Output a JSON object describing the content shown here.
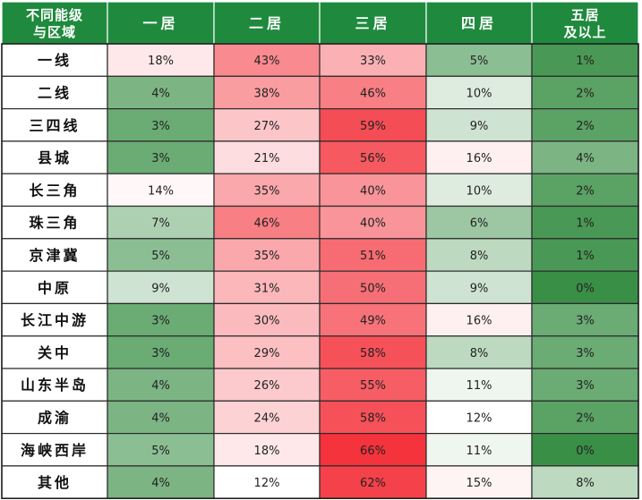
{
  "chart_data": {
    "type": "heatmap",
    "title": "",
    "corner_header": [
      "不同能级",
      "与区域"
    ],
    "columns": [
      {
        "label": [
          "一居"
        ]
      },
      {
        "label": [
          "二居"
        ]
      },
      {
        "label": [
          "三居"
        ]
      },
      {
        "label": [
          "四居"
        ]
      },
      {
        "label": [
          "五居",
          "及以上"
        ]
      }
    ],
    "rows": [
      "一线",
      "二线",
      "三四线",
      "县城",
      "长三角",
      "珠三角",
      "京津冀",
      "中原",
      "长江中游",
      "关中",
      "山东半岛",
      "成渝",
      "海峡西岸",
      "其他"
    ],
    "values": [
      [
        18,
        43,
        33,
        5,
        1
      ],
      [
        4,
        38,
        46,
        10,
        2
      ],
      [
        3,
        27,
        59,
        9,
        2
      ],
      [
        3,
        21,
        56,
        16,
        4
      ],
      [
        14,
        35,
        40,
        10,
        2
      ],
      [
        7,
        46,
        40,
        6,
        1
      ],
      [
        5,
        35,
        51,
        8,
        1
      ],
      [
        9,
        31,
        50,
        9,
        0
      ],
      [
        3,
        30,
        49,
        16,
        3
      ],
      [
        3,
        29,
        58,
        8,
        3
      ],
      [
        4,
        26,
        55,
        11,
        3
      ],
      [
        4,
        24,
        58,
        12,
        2
      ],
      [
        5,
        18,
        66,
        11,
        0
      ],
      [
        4,
        12,
        62,
        15,
        8
      ]
    ],
    "value_suffix": "%",
    "color_scale": {
      "low": "#3a8f46",
      "mid": "#ffffff",
      "high": "#f4333c"
    },
    "header_color": "#1f8a3d"
  }
}
